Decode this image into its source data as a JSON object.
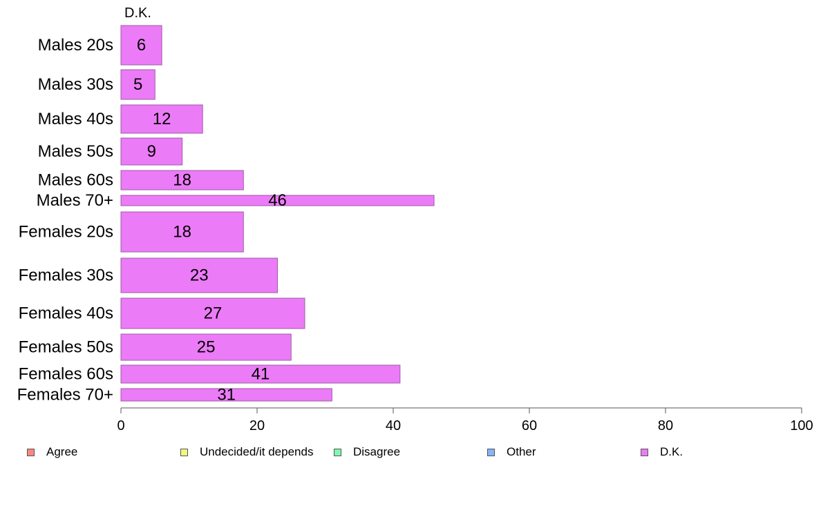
{
  "chart_data": {
    "type": "bar",
    "orientation": "horizontal",
    "title": "D.K.",
    "categories": [
      "Males 20s",
      "Males 30s",
      "Males 40s",
      "Males 50s",
      "Males 60s",
      "Males 70+",
      "Females 20s",
      "Females 30s",
      "Females 40s",
      "Females 50s",
      "Females 60s",
      "Females 70+"
    ],
    "series": [
      {
        "name": "D.K.",
        "color": "#ec7bf7",
        "values": [
          6,
          5,
          12,
          9,
          18,
          46,
          18,
          23,
          27,
          25,
          41,
          31
        ]
      }
    ],
    "xlim": [
      0,
      100
    ],
    "xticks": [
      0,
      20,
      40,
      60,
      80,
      100
    ],
    "grid": false,
    "legend": {
      "position": "bottom",
      "items": [
        {
          "label": "Agree",
          "color": "#f98883"
        },
        {
          "label": "Undecided/it depends",
          "color": "#eef97d"
        },
        {
          "label": "Disagree",
          "color": "#83f7b2"
        },
        {
          "label": "Other",
          "color": "#86b3f9"
        },
        {
          "label": "D.K.",
          "color": "#ec7bf7"
        }
      ]
    }
  }
}
